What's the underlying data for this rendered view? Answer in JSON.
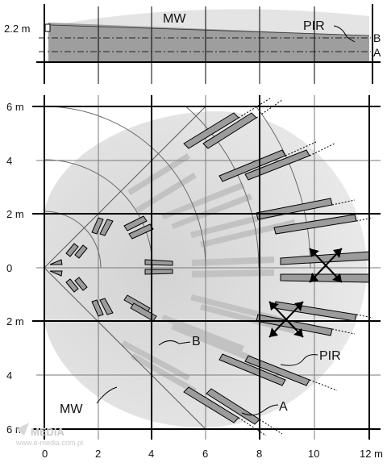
{
  "side_view": {
    "height_label": "2.2 m",
    "mw_label": "MW",
    "pir_label": "PIR",
    "zone_b_label": "B",
    "zone_a_label": "A"
  },
  "top_view": {
    "y_labels": [
      "6 m",
      "4",
      "2 m",
      "0",
      "2 m",
      "4",
      "6 m"
    ],
    "x_labels": [
      "0",
      "2",
      "4",
      "6",
      "8",
      "10",
      "12 m"
    ],
    "mw_label": "MW",
    "zone_b_label": "B",
    "pir_label": "PIR",
    "zone_a_label": "A"
  },
  "watermark": {
    "brand": "MEDIA",
    "url": "www.e-media.com.pl"
  },
  "colors": {
    "mw_zone": "#e0e0e0",
    "pir_beam": "#9c9c9c",
    "pir_beam_faint": "#c4c4c4",
    "grid_bold": "#000000",
    "grid_thin": "#7a7a7a"
  }
}
